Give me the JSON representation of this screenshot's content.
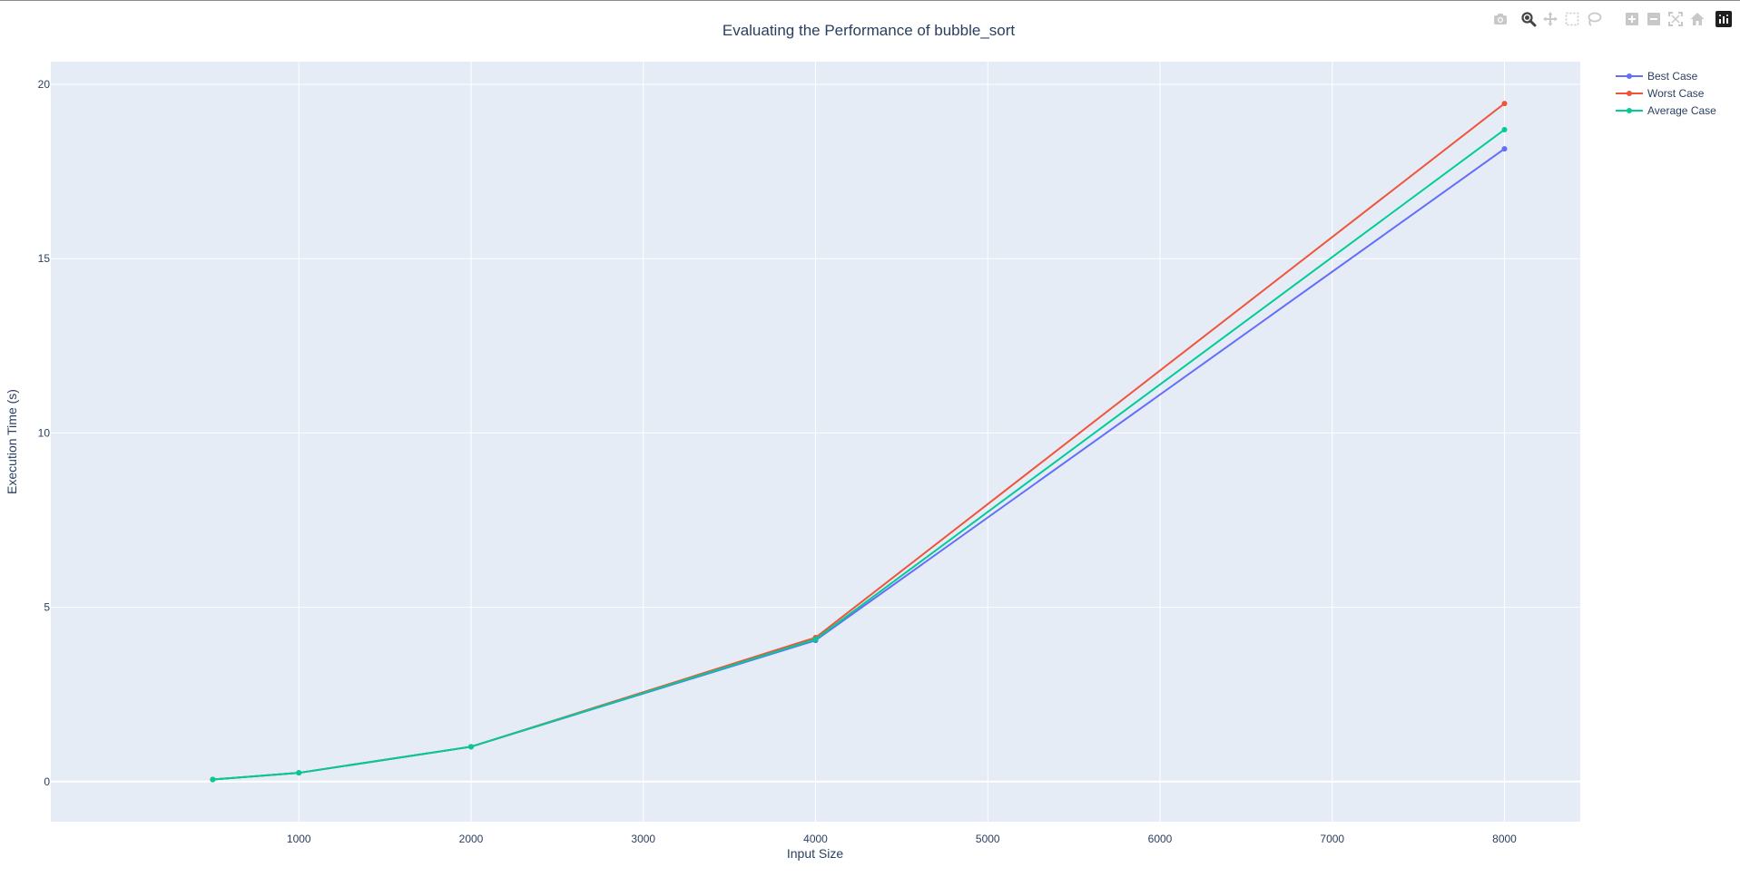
{
  "chart_data": {
    "type": "line",
    "title": "Evaluating the Performance of bubble_sort",
    "xlabel": "Input Size",
    "ylabel": "Execution Time (s)",
    "x": [
      500,
      1000,
      2000,
      4000,
      8000
    ],
    "series": [
      {
        "name": "Best Case",
        "values": [
          0.06,
          0.25,
          1.0,
          4.05,
          18.15
        ],
        "color": "#636efa"
      },
      {
        "name": "Worst Case",
        "values": [
          0.06,
          0.25,
          1.0,
          4.13,
          19.45
        ],
        "color": "#ef553b"
      },
      {
        "name": "Average Case",
        "values": [
          0.06,
          0.25,
          1.0,
          4.08,
          18.7
        ],
        "color": "#00cc96"
      }
    ],
    "xlim": [
      -440,
      8440
    ],
    "ylim": [
      -1.15,
      20.65
    ],
    "xticks": [
      1000,
      2000,
      3000,
      4000,
      5000,
      6000,
      7000,
      8000
    ],
    "xtick_labels": [
      "1000",
      "2000",
      "3000",
      "4000",
      "5000",
      "6000",
      "7000",
      "8000"
    ],
    "yticks": [
      0,
      5,
      10,
      15,
      20
    ],
    "ytick_labels": [
      "0",
      "5",
      "10",
      "15",
      "20"
    ],
    "grid": true,
    "legend": "top-right",
    "plot_bgcolor": "#e5ecf6",
    "grid_color": "#ffffff",
    "text_color": "#2a3f5f"
  },
  "modebar": {
    "buttons": [
      {
        "name": "camera-icon"
      },
      {
        "name": "zoom-icon",
        "active": true
      },
      {
        "name": "pan-icon"
      },
      {
        "name": "box-select-icon"
      },
      {
        "name": "lasso-select-icon"
      },
      {
        "name": "zoom-in-icon"
      },
      {
        "name": "zoom-out-icon"
      },
      {
        "name": "autoscale-icon"
      },
      {
        "name": "reset-axes-icon"
      },
      {
        "name": "plotly-logo-icon"
      }
    ]
  }
}
